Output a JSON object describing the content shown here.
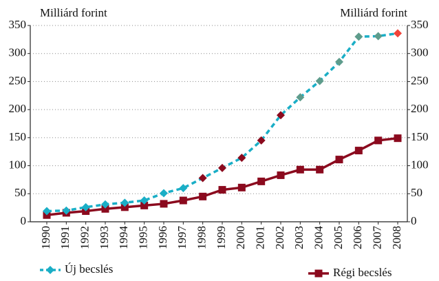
{
  "chart_data": {
    "type": "line",
    "ylabel": "Milliárd forint",
    "y2label": "Milliárd forint",
    "categories": [
      "1990",
      "1991",
      "1992",
      "1993",
      "1994",
      "1995",
      "1996",
      "1997",
      "1998",
      "1999",
      "2000",
      "2001",
      "2002",
      "2003",
      "2004",
      "2005",
      "2006",
      "2007",
      "2008"
    ],
    "series": [
      {
        "name": "Új becslés",
        "color": "#1aaec6",
        "style": "dashed",
        "marker": "diamond",
        "marker_colors": [
          "#1aaec6",
          "#1aaec6",
          "#1aaec6",
          "#1aaec6",
          "#1aaec6",
          "#1aaec6",
          "#1aaec6",
          "#1aaec6",
          "#8b0a1e",
          "#8b0a1e",
          "#8b0a1e",
          "#8b0a1e",
          "#8b0a1e",
          "#5e9c8c",
          "#5e9c8c",
          "#5e9c8c",
          "#5e9c8c",
          "#5e9c8c",
          "#f0443a"
        ],
        "values": [
          19,
          20,
          26,
          31,
          34,
          38,
          51,
          60,
          78,
          96,
          114,
          145,
          190,
          222,
          251,
          285,
          330,
          331,
          336
        ]
      },
      {
        "name": "Régi becslés",
        "color": "#8b0a1e",
        "style": "solid",
        "marker": "square",
        "values": [
          12,
          16,
          19,
          23,
          26,
          29,
          32,
          38,
          45,
          57,
          61,
          72,
          83,
          93,
          93,
          111,
          127,
          145,
          149
        ]
      }
    ],
    "ylim": [
      0,
      350
    ],
    "yticks": [
      0,
      50,
      100,
      150,
      200,
      250,
      300,
      350
    ],
    "y2lim": [
      0,
      350
    ],
    "y2ticks": [
      0,
      50,
      100,
      150,
      200,
      250,
      300,
      350
    ],
    "grid": true
  }
}
